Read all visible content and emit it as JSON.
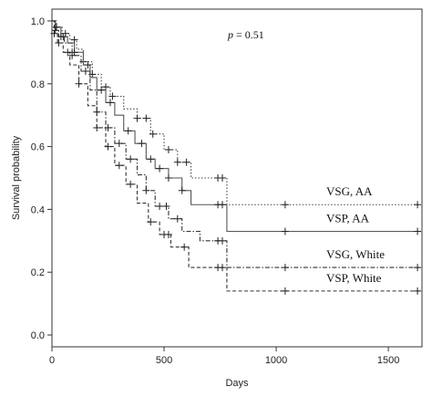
{
  "chart_data": {
    "type": "line",
    "subtype": "kaplan-meier",
    "xlabel": "Days",
    "ylabel": "Survival probability",
    "xlim": [
      0,
      1650
    ],
    "ylim": [
      0,
      1.0
    ],
    "xticks": [
      0,
      500,
      1000,
      1500
    ],
    "yticks": [
      0.0,
      0.2,
      0.4,
      0.6,
      0.8,
      1.0
    ],
    "annotation": {
      "italic": "p",
      "text": " = 0.51"
    },
    "grid": false,
    "legend": "inline labels at right",
    "series": [
      {
        "name": "VSG, AA",
        "style": "dotted",
        "x": [
          0,
          20,
          45,
          80,
          110,
          140,
          180,
          220,
          260,
          320,
          380,
          440,
          500,
          560,
          620,
          780,
          1640
        ],
        "y": [
          1.0,
          0.98,
          0.96,
          0.94,
          0.91,
          0.87,
          0.83,
          0.79,
          0.76,
          0.72,
          0.69,
          0.64,
          0.59,
          0.55,
          0.5,
          0.415,
          0.415
        ],
        "censored_x": [
          20,
          60,
          100,
          140,
          180,
          240,
          270,
          380,
          420,
          450,
          520,
          560,
          600,
          740,
          760,
          1040,
          1630
        ]
      },
      {
        "name": "VSP, AA",
        "style": "solid",
        "x": [
          0,
          15,
          40,
          70,
          100,
          140,
          170,
          200,
          240,
          280,
          320,
          370,
          420,
          460,
          520,
          580,
          620,
          780,
          1640
        ],
        "y": [
          1.0,
          0.98,
          0.95,
          0.93,
          0.9,
          0.86,
          0.82,
          0.78,
          0.74,
          0.7,
          0.65,
          0.61,
          0.56,
          0.53,
          0.5,
          0.46,
          0.415,
          0.33,
          0.33
        ],
        "censored_x": [
          20,
          50,
          100,
          160,
          220,
          260,
          340,
          400,
          440,
          480,
          520,
          580,
          740,
          760,
          1040,
          1630
        ]
      },
      {
        "name": "VSG, White",
        "style": "dotdash",
        "x": [
          0,
          15,
          30,
          55,
          90,
          130,
          170,
          200,
          240,
          280,
          330,
          380,
          420,
          460,
          520,
          580,
          660,
          780,
          1640
        ],
        "y": [
          1.0,
          0.97,
          0.95,
          0.93,
          0.89,
          0.84,
          0.78,
          0.71,
          0.66,
          0.61,
          0.56,
          0.51,
          0.46,
          0.41,
          0.37,
          0.33,
          0.3,
          0.215,
          0.215
        ],
        "censored_x": [
          15,
          40,
          90,
          150,
          200,
          250,
          300,
          350,
          420,
          480,
          510,
          560,
          740,
          760,
          1040,
          1630
        ]
      },
      {
        "name": "VSP, White",
        "style": "dashed",
        "x": [
          0,
          10,
          25,
          50,
          80,
          120,
          160,
          200,
          240,
          280,
          330,
          380,
          430,
          480,
          530,
          610,
          780,
          1640
        ],
        "y": [
          1.0,
          0.96,
          0.93,
          0.9,
          0.86,
          0.8,
          0.73,
          0.66,
          0.6,
          0.54,
          0.48,
          0.42,
          0.36,
          0.32,
          0.28,
          0.215,
          0.14,
          0.14
        ],
        "censored_x": [
          10,
          30,
          70,
          120,
          200,
          250,
          300,
          350,
          440,
          500,
          520,
          590,
          740,
          760,
          1040,
          1630
        ]
      }
    ]
  }
}
